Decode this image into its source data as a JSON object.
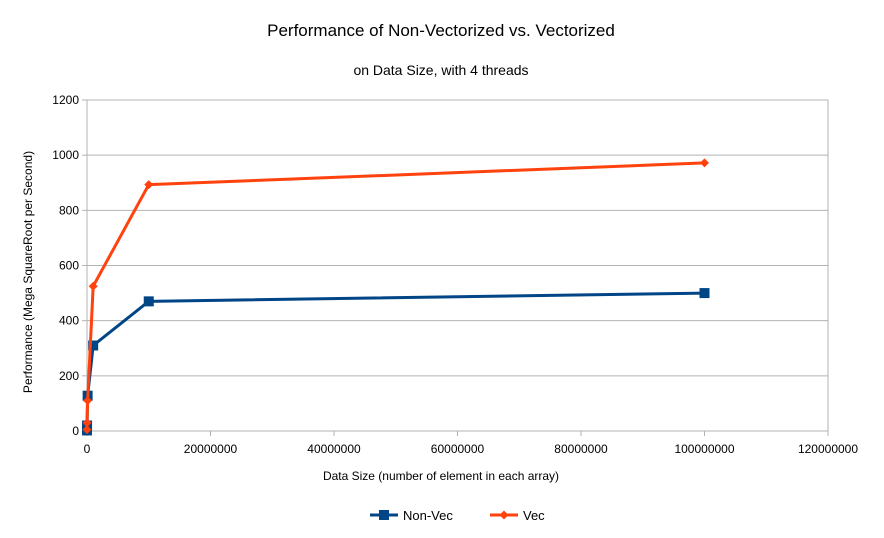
{
  "chart_data": {
    "type": "line",
    "title": "Performance of Non-Vectorized vs. Vectorized",
    "subtitle": "on Data Size, with 4 threads",
    "xlabel": "Data Size (number of element in each array)",
    "ylabel": "Performance (Mega SquareRoot per Second)",
    "xlim": [
      0,
      120000000
    ],
    "ylim": [
      0,
      1200
    ],
    "x_ticks": [
      0,
      20000000,
      40000000,
      60000000,
      80000000,
      100000000,
      120000000
    ],
    "y_ticks": [
      0,
      200,
      400,
      600,
      800,
      1000,
      1200
    ],
    "x_tick_labels": [
      "0",
      "20000000",
      "40000000",
      "60000000",
      "80000000",
      "100000000",
      "120000000"
    ],
    "y_tick_labels": [
      "0",
      "200",
      "400",
      "600",
      "800",
      "1000",
      "1200"
    ],
    "grid": "horizontal",
    "legend_position": "bottom",
    "series": [
      {
        "name": "Non-Vec",
        "color": "#004586",
        "marker": "square",
        "x": [
          1000,
          10000,
          100000,
          1000000,
          10000000,
          100000000
        ],
        "y": [
          2,
          20,
          128,
          310,
          470,
          500
        ]
      },
      {
        "name": "Vec",
        "color": "#ff420e",
        "marker": "diamond",
        "x": [
          1000,
          10000,
          100000,
          1000000,
          10000000,
          100000000
        ],
        "y": [
          5,
          30,
          110,
          525,
          893,
          972
        ]
      }
    ]
  }
}
